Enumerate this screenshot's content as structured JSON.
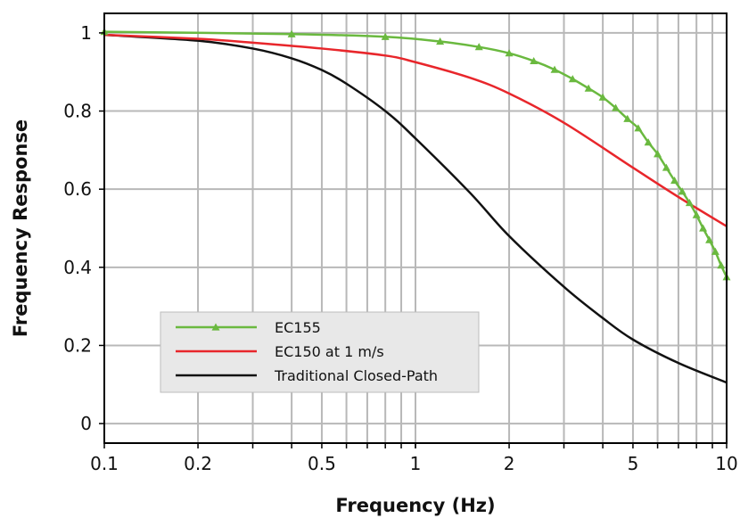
{
  "chart_data": {
    "type": "line",
    "xlabel": "Frequency (Hz)",
    "ylabel": "Frequency Response",
    "xscale": "log",
    "xlim": [
      0.1,
      10
    ],
    "ylim": [
      -0.05,
      1.05
    ],
    "xticks": [
      0.1,
      0.2,
      0.5,
      1,
      2,
      5,
      10
    ],
    "xtick_labels": [
      "0.1",
      "0.2",
      "0.5",
      "1",
      "2",
      "5",
      "10"
    ],
    "yticks": [
      0,
      0.2,
      0.4,
      0.6,
      0.8,
      1
    ],
    "ytick_labels": [
      "0",
      "0.2",
      "0.4",
      "0.6",
      "0.8",
      "1"
    ],
    "grid": true,
    "legend_position": "lower-left",
    "series": [
      {
        "name": "EC155",
        "color": "#6ab93f",
        "marker": "triangle",
        "x": [
          0.1,
          0.4,
          0.8,
          1.2,
          1.6,
          2.0,
          2.4,
          2.8,
          3.2,
          3.6,
          4.0,
          4.4,
          4.8,
          5.2,
          5.6,
          6.0,
          6.4,
          6.8,
          7.2,
          7.6,
          8.0,
          8.4,
          8.8,
          9.2,
          9.6,
          10
        ],
        "y": [
          1.003,
          0.997,
          0.99,
          0.978,
          0.964,
          0.948,
          0.928,
          0.906,
          0.882,
          0.858,
          0.835,
          0.808,
          0.78,
          0.756,
          0.72,
          0.69,
          0.655,
          0.622,
          0.594,
          0.565,
          0.534,
          0.5,
          0.47,
          0.44,
          0.405,
          0.375
        ]
      },
      {
        "name": "EC150 at 1 m/s",
        "color": "#e8262b",
        "marker": "none",
        "x": [
          0.1,
          0.2,
          0.3,
          0.5,
          0.8,
          1.0,
          1.5,
          2.0,
          3.0,
          5.0,
          7.0,
          10
        ],
        "y": [
          0.995,
          0.985,
          0.975,
          0.96,
          0.942,
          0.925,
          0.885,
          0.845,
          0.77,
          0.655,
          0.58,
          0.505
        ]
      },
      {
        "name": "Traditional Closed-Path",
        "color": "#111111",
        "marker": "none",
        "x": [
          0.1,
          0.2,
          0.3,
          0.4,
          0.5,
          0.6,
          0.8,
          1.0,
          1.5,
          2.0,
          3.0,
          4.0,
          5.0,
          7.0,
          10
        ],
        "y": [
          0.995,
          0.98,
          0.96,
          0.935,
          0.905,
          0.87,
          0.8,
          0.73,
          0.59,
          0.48,
          0.35,
          0.27,
          0.215,
          0.155,
          0.105
        ]
      }
    ]
  }
}
